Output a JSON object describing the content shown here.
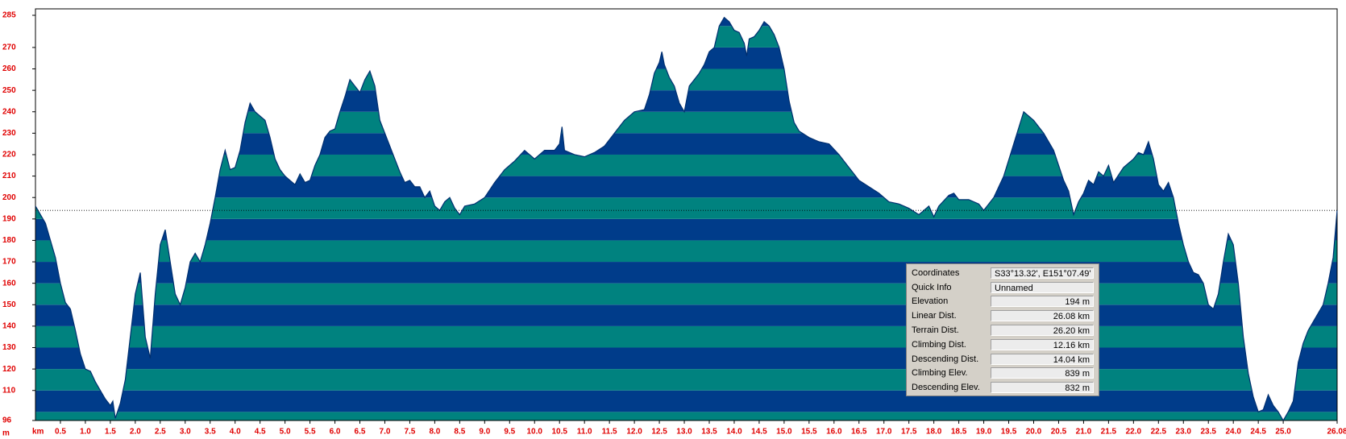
{
  "chart_data": {
    "type": "area",
    "x_label": "km",
    "y_label": "m",
    "x": [
      0,
      0.2,
      0.4,
      0.5,
      0.6,
      0.7,
      0.8,
      0.9,
      1.0,
      1.1,
      1.2,
      1.3,
      1.4,
      1.5,
      1.55,
      1.6,
      1.7,
      1.8,
      1.9,
      2.0,
      2.1,
      2.2,
      2.3,
      2.4,
      2.5,
      2.6,
      2.7,
      2.8,
      2.9,
      3.0,
      3.1,
      3.2,
      3.3,
      3.4,
      3.5,
      3.6,
      3.7,
      3.8,
      3.9,
      4.0,
      4.1,
      4.2,
      4.3,
      4.4,
      4.5,
      4.6,
      4.7,
      4.8,
      4.9,
      5.0,
      5.1,
      5.2,
      5.3,
      5.4,
      5.5,
      5.6,
      5.7,
      5.8,
      5.9,
      6.0,
      6.1,
      6.2,
      6.3,
      6.4,
      6.5,
      6.6,
      6.7,
      6.8,
      6.9,
      7.0,
      7.1,
      7.2,
      7.3,
      7.4,
      7.5,
      7.6,
      7.7,
      7.8,
      7.9,
      8.0,
      8.1,
      8.2,
      8.3,
      8.4,
      8.5,
      8.6,
      8.8,
      9.0,
      9.2,
      9.4,
      9.6,
      9.8,
      10.0,
      10.2,
      10.4,
      10.5,
      10.55,
      10.6,
      10.8,
      11.0,
      11.2,
      11.4,
      11.6,
      11.8,
      12.0,
      12.2,
      12.3,
      12.4,
      12.5,
      12.55,
      12.6,
      12.7,
      12.8,
      12.9,
      13.0,
      13.1,
      13.2,
      13.3,
      13.4,
      13.5,
      13.6,
      13.7,
      13.8,
      13.9,
      14.0,
      14.1,
      14.2,
      14.25,
      14.3,
      14.4,
      14.5,
      14.6,
      14.7,
      14.8,
      14.9,
      15.0,
      15.1,
      15.2,
      15.3,
      15.5,
      15.7,
      15.9,
      16.1,
      16.3,
      16.5,
      16.7,
      16.9,
      17.1,
      17.3,
      17.5,
      17.7,
      17.9,
      18.0,
      18.1,
      18.3,
      18.4,
      18.5,
      18.7,
      18.9,
      19.0,
      19.2,
      19.4,
      19.6,
      19.8,
      20.0,
      20.2,
      20.4,
      20.6,
      20.7,
      20.8,
      20.9,
      21.0,
      21.1,
      21.2,
      21.3,
      21.4,
      21.5,
      21.6,
      21.8,
      22.0,
      22.1,
      22.2,
      22.3,
      22.4,
      22.5,
      22.6,
      22.7,
      22.8,
      22.9,
      23.0,
      23.1,
      23.2,
      23.3,
      23.4,
      23.5,
      23.6,
      23.7,
      23.8,
      23.9,
      24.0,
      24.1,
      24.2,
      24.3,
      24.4,
      24.5,
      24.6,
      24.7,
      24.8,
      24.9,
      25.0,
      25.1,
      25.2,
      25.3,
      25.4,
      25.5,
      25.6,
      25.7,
      25.8,
      25.9,
      26.0,
      26.08
    ],
    "values": [
      196,
      188,
      172,
      160,
      151,
      148,
      138,
      127,
      120,
      119,
      114,
      110,
      106,
      103,
      105,
      97,
      104,
      115,
      135,
      155,
      165,
      135,
      125,
      155,
      178,
      185,
      170,
      155,
      150,
      158,
      170,
      174,
      170,
      178,
      188,
      200,
      213,
      222,
      213,
      214,
      222,
      235,
      244,
      240,
      238,
      236,
      228,
      218,
      213,
      210,
      208,
      206,
      211,
      207,
      208,
      215,
      220,
      228,
      231,
      232,
      240,
      247,
      255,
      252,
      249,
      255,
      259,
      252,
      236,
      230,
      224,
      218,
      212,
      207,
      208,
      205,
      205,
      200,
      203,
      196,
      194,
      198,
      200,
      195,
      192,
      196,
      197,
      200,
      207,
      213,
      217,
      222,
      218,
      222,
      222,
      225,
      233,
      222,
      220,
      219,
      221,
      224,
      230,
      236,
      240,
      241,
      248,
      258,
      263,
      268,
      262,
      256,
      252,
      244,
      240,
      252,
      255,
      258,
      262,
      268,
      270,
      280,
      284,
      282,
      278,
      277,
      272,
      266,
      274,
      275,
      278,
      282,
      280,
      276,
      270,
      260,
      245,
      235,
      231,
      228,
      226,
      225,
      220,
      214,
      208,
      205,
      202,
      198,
      197,
      195,
      192,
      196,
      191,
      196,
      201,
      202,
      199,
      199,
      197,
      194,
      200,
      210,
      225,
      240,
      236,
      230,
      222,
      208,
      203,
      192,
      198,
      202,
      208,
      206,
      212,
      210,
      215,
      207,
      214,
      218,
      221,
      220,
      226,
      218,
      206,
      203,
      207,
      200,
      188,
      178,
      170,
      165,
      164,
      160,
      150,
      148,
      155,
      170,
      183,
      178,
      160,
      135,
      118,
      107,
      100,
      101,
      108,
      103,
      100,
      96,
      100,
      105,
      123,
      132,
      138,
      142,
      146,
      150,
      160,
      172,
      194
    ],
    "band_colors": [
      "#003c8a",
      "#00827f"
    ],
    "line_color": "#002f70",
    "reference_line": 194,
    "xlim": [
      0,
      26.08
    ],
    "ylim": [
      96,
      288
    ],
    "xticks": [
      0.5,
      {
        "value": 1,
        "label": "1.0"
      },
      1.5,
      {
        "value": 2,
        "label": "2.0"
      },
      2.5,
      {
        "value": 3,
        "label": "3.0"
      },
      3.5,
      {
        "value": 4,
        "label": "4.0"
      },
      4.5,
      {
        "value": 5,
        "label": "5.0"
      },
      5.5,
      {
        "value": 6,
        "label": "6.0"
      },
      6.5,
      {
        "value": 7,
        "label": "7.0"
      },
      7.5,
      {
        "value": 8,
        "label": "8.0"
      },
      8.5,
      {
        "value": 9,
        "label": "9.0"
      },
      9.5,
      {
        "value": 10,
        "label": "10.0"
      },
      10.5,
      {
        "value": 11,
        "label": "11.0"
      },
      11.5,
      {
        "value": 12,
        "label": "12.0"
      },
      12.5,
      {
        "value": 13,
        "label": "13.0"
      },
      13.5,
      {
        "value": 14,
        "label": "14.0"
      },
      14.5,
      {
        "value": 15,
        "label": "15.0"
      },
      15.5,
      {
        "value": 16,
        "label": "16.0"
      },
      16.5,
      {
        "value": 17,
        "label": "17.0"
      },
      17.5,
      {
        "value": 18,
        "label": "18.0"
      },
      18.5,
      {
        "value": 19,
        "label": "19.0"
      },
      19.5,
      {
        "value": 20,
        "label": "20.0"
      },
      20.5,
      {
        "value": 21,
        "label": "21.0"
      },
      21.5,
      {
        "value": 22,
        "label": "22.0"
      },
      22.5,
      {
        "value": 23,
        "label": "23.0"
      },
      23.5,
      {
        "value": 24,
        "label": "24.0"
      },
      24.5,
      {
        "value": 25,
        "label": "25.0"
      },
      26.08
    ],
    "yticks": [
      285,
      270,
      260,
      250,
      240,
      230,
      220,
      210,
      200,
      190,
      180,
      170,
      160,
      150,
      140,
      130,
      120,
      110,
      96
    ]
  },
  "info_panel": {
    "rows": [
      {
        "label": "Coordinates",
        "value": "S33°13.32', E151°07.49'"
      },
      {
        "label": "Quick Info",
        "value": "Unnamed"
      },
      {
        "label": "Elevation",
        "value": "194 m"
      },
      {
        "label": "Linear Dist.",
        "value": "26.08 km"
      },
      {
        "label": "Terrain Dist.",
        "value": "26.20 km"
      },
      {
        "label": "Climbing Dist.",
        "value": "12.16 km"
      },
      {
        "label": "Descending Dist.",
        "value": "14.04 km"
      },
      {
        "label": "Climbing Elev.",
        "value": "839 m"
      },
      {
        "label": "Descending Elev.",
        "value": "832 m"
      }
    ]
  }
}
